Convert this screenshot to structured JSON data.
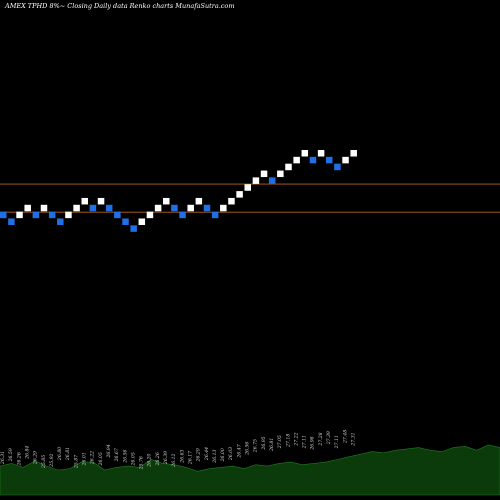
{
  "header": {
    "title": "AMEX  TPHD 8%~ Closing Daily data Renko  charts MunafaSutra.com"
  },
  "colors": {
    "background": "#000000",
    "up_brick": "#ffffff",
    "down_brick": "#1f6fe6",
    "reference_line": "#b8651a",
    "volume_fill": "#0b3a0b",
    "volume_stroke": "#1f7a1f"
  },
  "chart_data": {
    "type": "renko",
    "title": "AMEX  TPHD 8%~ Closing Daily data Renko  charts MunafaSutra.com",
    "brick_direction": [
      "down",
      "down",
      "up",
      "up",
      "down",
      "up",
      "down",
      "down",
      "up",
      "up",
      "up",
      "down",
      "up",
      "down",
      "down",
      "down",
      "down",
      "up",
      "up",
      "up",
      "up",
      "down",
      "down",
      "up",
      "up",
      "down",
      "down",
      "up",
      "up",
      "up",
      "up",
      "up",
      "up",
      "down",
      "up",
      "up",
      "up",
      "up",
      "down",
      "up",
      "down",
      "down",
      "up",
      "up"
    ],
    "brick_levels": [
      1,
      0,
      1,
      2,
      1,
      2,
      1,
      0,
      1,
      2,
      3,
      2,
      3,
      2,
      1,
      0,
      -1,
      0,
      1,
      2,
      3,
      2,
      1,
      2,
      3,
      2,
      1,
      2,
      3,
      4,
      5,
      6,
      7,
      6,
      7,
      8,
      9,
      10,
      9,
      10,
      9,
      8,
      9,
      10
    ],
    "reference_lines": [
      {
        "name": "upper",
        "level": 5.5
      },
      {
        "name": "lower",
        "level": 1.4
      }
    ],
    "volume_labels": [
      "26.31",
      "26.59",
      "26.26",
      "26.84",
      "26.29",
      "25.85",
      "25.92",
      "26.80",
      "26.81",
      "25.87",
      "26.01",
      "26.22",
      "26.05",
      "26.94",
      "26.67",
      "26.56",
      "26.05",
      "25.76",
      "26.20",
      "26.26",
      "26.39",
      "26.12",
      "26.63",
      "26.17",
      "26.29",
      "26.44",
      "26.13",
      "26.00",
      "26.03",
      "26.47",
      "26.56",
      "26.75",
      "26.95",
      "26.81",
      "27.05",
      "27.18",
      "27.22",
      "27.11",
      "26.98",
      "27.28",
      "27.39",
      "27.11",
      "27.48",
      "27.31"
    ],
    "volume_values": [
      22,
      24,
      21,
      26,
      22,
      19,
      20,
      25,
      25,
      19,
      21,
      22,
      21,
      27,
      24,
      23,
      21,
      18,
      20,
      21,
      22,
      20,
      23,
      22,
      24,
      25,
      23,
      24,
      25,
      27,
      29,
      31,
      33,
      32,
      34,
      35,
      36,
      34,
      33,
      36,
      37,
      34,
      38,
      36
    ]
  }
}
